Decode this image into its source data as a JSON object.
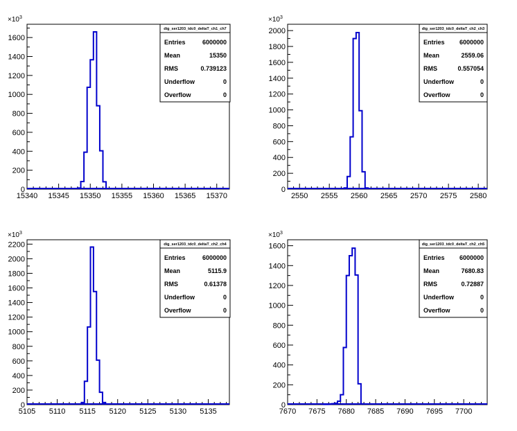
{
  "chart_data": [
    {
      "type": "bar",
      "title": "",
      "xlabel": "",
      "ylabel": "",
      "y_exponent_label": "×10",
      "y_exponent": "3",
      "xlim": [
        15340,
        15372
      ],
      "ylim": [
        0,
        1740
      ],
      "x_ticks": [
        "15340",
        "15345",
        "15350",
        "15355",
        "15360",
        "15365",
        "15370"
      ],
      "y_ticks": [
        "0",
        "200",
        "400",
        "600",
        "800",
        "1000",
        "1200",
        "1400",
        "1600"
      ],
      "bin_width": 0.5,
      "histogram": {
        "x": [
          15348,
          15348.5,
          15349,
          15349.5,
          15350,
          15350.5,
          15351,
          15351.5,
          15352
        ],
        "values": [
          12,
          80,
          390,
          1075,
          1365,
          1660,
          880,
          405,
          78
        ]
      },
      "stats": {
        "name": "dig_ser1203_tdc0_deltaT_ch1_ch7",
        "rows": [
          {
            "label": "Entries",
            "value": "6000000"
          },
          {
            "label": "Mean",
            "value": "15350"
          },
          {
            "label": "RMS",
            "value": "0.739123"
          },
          {
            "label": "Underflow",
            "value": "0"
          },
          {
            "label": "Overflow",
            "value": "0"
          }
        ]
      }
    },
    {
      "type": "bar",
      "title": "",
      "xlabel": "",
      "ylabel": "",
      "y_exponent_label": "×10",
      "y_exponent": "3",
      "xlim": [
        2548,
        2581.5
      ],
      "ylim": [
        0,
        2080
      ],
      "x_ticks": [
        "2550",
        "2555",
        "2560",
        "2565",
        "2570",
        "2575",
        "2580"
      ],
      "y_ticks": [
        "0",
        "200",
        "400",
        "600",
        "800",
        "1000",
        "1200",
        "1400",
        "1600",
        "1800",
        "2000"
      ],
      "bin_width": 0.5,
      "histogram": {
        "x": [
          2557.5,
          2558,
          2558.5,
          2559,
          2559.5,
          2560,
          2560.5,
          2561
        ],
        "values": [
          15,
          160,
          660,
          1900,
          1975,
          990,
          220,
          15
        ]
      },
      "stats": {
        "name": "dig_ser1203_tdc0_deltaT_ch2_ch3",
        "rows": [
          {
            "label": "Entries",
            "value": "6000000"
          },
          {
            "label": "Mean",
            "value": "2559.06"
          },
          {
            "label": "RMS",
            "value": "0.557054"
          },
          {
            "label": "Underflow",
            "value": "0"
          },
          {
            "label": "Overflow",
            "value": "0"
          }
        ]
      }
    },
    {
      "type": "bar",
      "title": "",
      "xlabel": "",
      "ylabel": "",
      "y_exponent_label": "×10",
      "y_exponent": "3",
      "xlim": [
        5105,
        5138.5
      ],
      "ylim": [
        0,
        2260
      ],
      "x_ticks": [
        "5105",
        "5110",
        "5115",
        "5120",
        "5125",
        "5130",
        "5135"
      ],
      "y_ticks": [
        "0",
        "200",
        "400",
        "600",
        "800",
        "1000",
        "1200",
        "1400",
        "1600",
        "1800",
        "2000",
        "2200"
      ],
      "bin_width": 0.5,
      "histogram": {
        "x": [
          5114,
          5114.5,
          5115,
          5115.5,
          5116,
          5116.5,
          5117,
          5117.5
        ],
        "values": [
          30,
          320,
          1065,
          2160,
          1550,
          610,
          170,
          30
        ]
      },
      "stats": {
        "name": "dig_ser1203_tdc0_deltaT_ch2_ch4",
        "rows": [
          {
            "label": "Entries",
            "value": "6000000"
          },
          {
            "label": "Mean",
            "value": "5115.9"
          },
          {
            "label": "RMS",
            "value": "0.61378"
          },
          {
            "label": "Underflow",
            "value": "0"
          },
          {
            "label": "Overflow",
            "value": "0"
          }
        ]
      }
    },
    {
      "type": "bar",
      "title": "",
      "xlabel": "",
      "ylabel": "",
      "y_exponent_label": "×10",
      "y_exponent": "3",
      "xlim": [
        7670,
        7704
      ],
      "ylim": [
        0,
        1660
      ],
      "x_ticks": [
        "7670",
        "7675",
        "7680",
        "7685",
        "7690",
        "7695",
        "7700"
      ],
      "y_ticks": [
        "0",
        "200",
        "400",
        "600",
        "800",
        "1000",
        "1200",
        "1400",
        "1600"
      ],
      "bin_width": 0.5,
      "histogram": {
        "x": [
          7676,
          7676.5,
          7677,
          7677.5,
          7678,
          7678.5,
          7679,
          7679.5,
          7680,
          7680.5,
          7681,
          7681.5,
          7682,
          7682.5
        ],
        "values": [
          3,
          3,
          5,
          10,
          15,
          35,
          100,
          575,
          1300,
          1500,
          1575,
          1305,
          210,
          8
        ]
      },
      "stats": {
        "name": "dig_ser1203_tdc0_deltaT_ch2_ch5",
        "rows": [
          {
            "label": "Entries",
            "value": "6000000"
          },
          {
            "label": "Mean",
            "value": "7680.83"
          },
          {
            "label": "RMS",
            "value": "0.72887"
          },
          {
            "label": "Underflow",
            "value": "0"
          },
          {
            "label": "Overflow",
            "value": "0"
          }
        ]
      }
    }
  ]
}
